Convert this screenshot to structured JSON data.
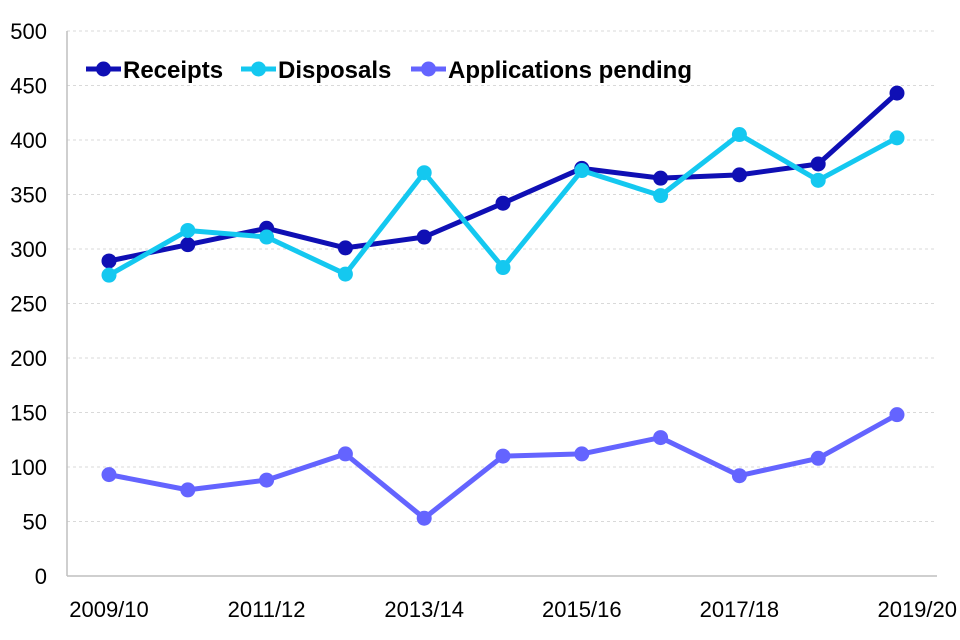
{
  "chart_data": {
    "type": "line",
    "title": "",
    "xlabel": "",
    "ylabel": "",
    "ylim": [
      0,
      500
    ],
    "yticks": [
      0,
      50,
      100,
      150,
      200,
      250,
      300,
      350,
      400,
      450,
      500
    ],
    "categories": [
      "2009/10",
      "2010/11",
      "2011/12",
      "2012/13",
      "2013/14",
      "2014/15",
      "2015/16",
      "2016/17",
      "2017/18",
      "2018/19",
      "2019/20"
    ],
    "xtick_labels": [
      "2009/10",
      "",
      "2011/12",
      "",
      "2013/14",
      "",
      "2015/16",
      "",
      "2017/18",
      "",
      "2019/20"
    ],
    "grid": true,
    "legend_position": "top-left",
    "series": [
      {
        "name": "Receipts",
        "color": "#0f0fb4",
        "values": [
          289,
          304,
          319,
          301,
          311,
          342,
          374,
          365,
          368,
          378,
          443
        ]
      },
      {
        "name": "Disposals",
        "color": "#14c8f0",
        "values": [
          276,
          317,
          311,
          277,
          370,
          283,
          372,
          349,
          405,
          363,
          402
        ]
      },
      {
        "name": "Applications pending",
        "color": "#6464ff",
        "values": [
          93,
          79,
          88,
          112,
          53,
          110,
          112,
          127,
          92,
          108,
          148
        ]
      }
    ]
  }
}
